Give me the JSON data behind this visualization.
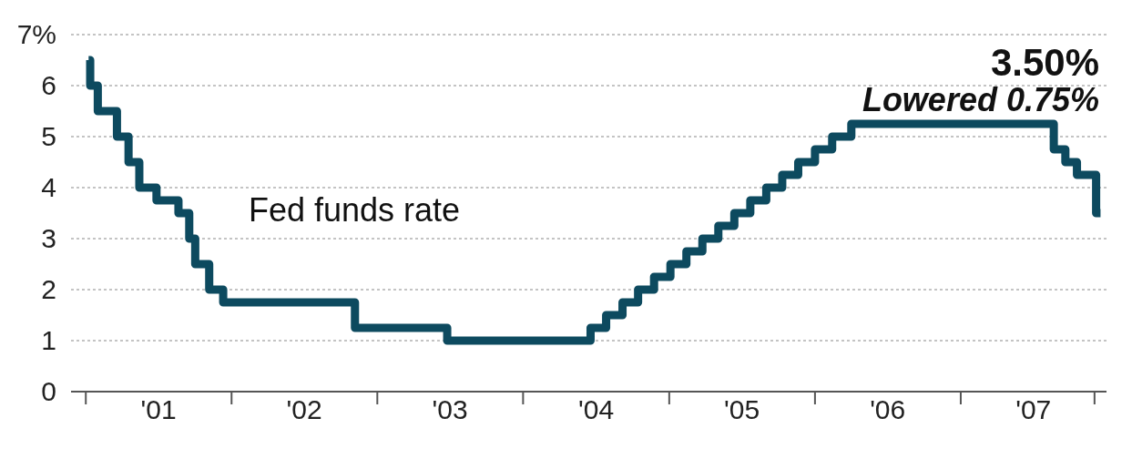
{
  "chart_data": {
    "type": "step",
    "x": [
      "2001-01-08",
      "2001-01-12",
      "2001-01-31",
      "2001-03-20",
      "2001-04-18",
      "2001-05-15",
      "2001-06-27",
      "2001-08-21",
      "2001-09-17",
      "2001-10-02",
      "2001-11-06",
      "2001-12-11",
      "2002-11-06",
      "2003-06-25",
      "2004-06-18",
      "2004-07-27",
      "2004-09-06",
      "2004-10-15",
      "2004-11-24",
      "2005-01-04",
      "2005-02-13",
      "2005-03-25",
      "2005-05-04",
      "2005-06-13",
      "2005-07-23",
      "2005-09-01",
      "2005-10-11",
      "2005-11-20",
      "2006-01-01",
      "2006-02-13",
      "2006-04-02",
      "2006-05-22",
      "2007-08-22",
      "2007-09-20",
      "2007-10-19",
      "2007-12-06",
      "2007-12-17"
    ],
    "series": [
      {
        "color": "#0d4a5f",
        "values": [
          6.5,
          6.0,
          5.5,
          5.0,
          4.5,
          4.0,
          3.75,
          3.5,
          3.0,
          2.5,
          2.0,
          1.75,
          1.25,
          1.0,
          1.25,
          1.5,
          1.75,
          2.0,
          2.25,
          2.5,
          2.75,
          3.0,
          3.25,
          3.5,
          3.75,
          4.0,
          4.25,
          4.5,
          4.75,
          5.0,
          5.25,
          5.25,
          4.75,
          4.5,
          4.25,
          3.5,
          3.5
        ]
      }
    ],
    "xlim": [
      "2000-11-25",
      "2008-01-01"
    ],
    "xticks": [
      {
        "value": "2001-01-01",
        "label": null
      },
      {
        "value": "2001-07-02",
        "label": "'01"
      },
      {
        "value": "2002-01-01",
        "label": null
      },
      {
        "value": "2002-07-02",
        "label": "'02"
      },
      {
        "value": "2003-01-01",
        "label": null
      },
      {
        "value": "2003-07-02",
        "label": "'03"
      },
      {
        "value": "2004-01-01",
        "label": null
      },
      {
        "value": "2004-07-02",
        "label": "'04"
      },
      {
        "value": "2005-01-01",
        "label": null
      },
      {
        "value": "2005-07-02",
        "label": "'05"
      },
      {
        "value": "2006-01-01",
        "label": null
      },
      {
        "value": "2006-07-02",
        "label": "'06"
      },
      {
        "value": "2007-01-01",
        "label": null
      },
      {
        "value": "2007-07-02",
        "label": "'07"
      },
      {
        "value": "2007-12-02",
        "label": null
      }
    ],
    "ylim": [
      0,
      7
    ],
    "yticks": [
      0,
      1,
      2,
      3,
      4,
      5,
      6,
      {
        "value": 7,
        "label": "7%"
      }
    ],
    "grid": "y",
    "annotations": [
      "Fed funds rate",
      "3.50%",
      "Lowered 0.75%"
    ]
  }
}
